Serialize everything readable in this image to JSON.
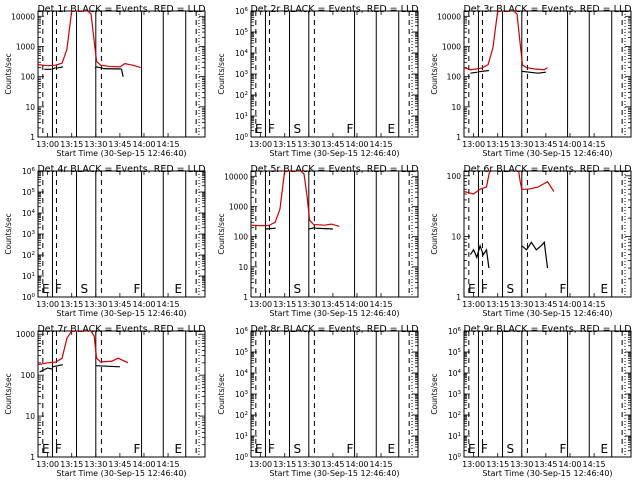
{
  "figure": {
    "colors": {
      "events": "#000000",
      "lld": "#cc0000",
      "background": "#ffffff"
    },
    "ylabel": "Counts/sec",
    "xlabel": "Start Time (30-Sep-15 12:46:40)",
    "xticks": [
      "13:00",
      "13:15",
      "13:30",
      "13:45",
      "14:00",
      "14:15"
    ]
  },
  "chart_data": [
    {
      "type": "line",
      "title": "Det 1r BLACK = Events, RED = LLD",
      "yscale": "log",
      "ylim": [
        1,
        15000
      ],
      "yticks": [
        "1",
        "10",
        "100",
        "1000",
        "10000"
      ],
      "xlim_min": [
        -6,
        98
      ],
      "dashed_lines": [
        -3,
        5.5,
        33.5,
        92.5
      ],
      "solid_lines": [
        3,
        18,
        30,
        58.5,
        72,
        86
      ],
      "region_labels": [],
      "series": [
        {
          "name": "Events",
          "segments": [
            {
              "x": [
                -2,
                2.5
              ],
              "y": [
                175,
                175
              ]
            },
            {
              "x": [
                3,
                5
              ],
              "y": [
                180,
                200
              ]
            },
            {
              "x": [
                5.5,
                9.5
              ],
              "y": [
                190,
                210
              ]
            },
            {
              "x": [
                29.5,
                30
              ],
              "y": [
                190,
                200
              ]
            },
            {
              "x": [
                30.2,
                34.5
              ],
              "y": [
                210,
                190
              ]
            },
            {
              "x": [
                34.5,
                46
              ],
              "y": [
                185,
                180
              ]
            },
            {
              "x": [
                46,
                47
              ],
              "y": [
                180,
                100
              ]
            }
          ]
        },
        {
          "name": "LLD",
          "segments": [
            {
              "x": [
                -6,
                0,
                5,
                9,
                12,
                15,
                18,
                22,
                25,
                27,
                29,
                30.5,
                33,
                38,
                45,
                48,
                53,
                58
              ],
              "y": [
                250,
                230,
                240,
                280,
                800,
                15000,
                15000,
                15000,
                15000,
                12000,
                1500,
                320,
                240,
                220,
                210,
                270,
                240,
                200
              ]
            }
          ]
        }
      ]
    },
    {
      "type": "line",
      "title": "Det 2r BLACK = Events, RED = LLD",
      "yscale": "log",
      "ylim": [
        1,
        1000000
      ],
      "yticks": [
        "10^0",
        "10^1",
        "10^2",
        "10^3",
        "10^4",
        "10^5",
        "10^6"
      ],
      "xlim_min": [
        -6,
        98
      ],
      "dashed_lines": [
        -3,
        5.5,
        33.5,
        92.5
      ],
      "solid_lines": [
        3,
        18,
        30,
        58.5,
        72,
        86
      ],
      "region_labels": [
        "E",
        "F",
        "S",
        "F",
        "E"
      ],
      "series": [
        {
          "name": "Events",
          "segments": []
        },
        {
          "name": "LLD",
          "segments": []
        }
      ]
    },
    {
      "type": "line",
      "title": "Det 3r BLACK = Events, RED = LLD",
      "yscale": "log",
      "ylim": [
        1,
        15000
      ],
      "yticks": [
        "1",
        "10",
        "100",
        "1000",
        "10000"
      ],
      "xlim_min": [
        -6,
        98
      ],
      "dashed_lines": [
        -3,
        5.5,
        33.5,
        92.5
      ],
      "solid_lines": [
        3,
        18,
        30,
        58.5,
        72,
        86
      ],
      "region_labels": [],
      "series": [
        {
          "name": "Events",
          "segments": [
            {
              "x": [
                -2,
                2.5
              ],
              "y": [
                130,
                140
              ]
            },
            {
              "x": [
                3,
                9.5
              ],
              "y": [
                145,
                160
              ]
            },
            {
              "x": [
                30,
                40
              ],
              "y": [
                150,
                130
              ]
            },
            {
              "x": [
                40,
                45
              ],
              "y": [
                130,
                140
              ]
            }
          ]
        },
        {
          "name": "LLD",
          "segments": [
            {
              "x": [
                -6,
                -2,
                5,
                9,
                12,
                15,
                18,
                22,
                25,
                27,
                29,
                30.5,
                33,
                38,
                44,
                46
              ],
              "y": [
                200,
                170,
                190,
                250,
                900,
                15000,
                15000,
                15000,
                15000,
                12000,
                1200,
                240,
                200,
                180,
                170,
                200
              ]
            }
          ]
        }
      ]
    },
    {
      "type": "line",
      "title": "Det 4r BLACK = Events, RED = LLD",
      "yscale": "log",
      "ylim": [
        1,
        1000000
      ],
      "yticks": [
        "10^0",
        "10^1",
        "10^2",
        "10^3",
        "10^4",
        "10^5",
        "10^6"
      ],
      "xlim_min": [
        -6,
        98
      ],
      "dashed_lines": [
        -3,
        5.5,
        33.5,
        92.5
      ],
      "solid_lines": [
        3,
        18,
        30,
        58.5,
        72,
        86
      ],
      "region_labels": [
        "E",
        "F",
        "S",
        "F",
        "E"
      ],
      "series": [
        {
          "name": "Events",
          "segments": []
        },
        {
          "name": "LLD",
          "segments": []
        }
      ]
    },
    {
      "type": "line",
      "title": "Det 5r BLACK = Events, RED = LLD",
      "yscale": "log",
      "ylim": [
        1,
        15000
      ],
      "yticks": [
        "1",
        "10",
        "100",
        "1000",
        "10000"
      ],
      "xlim_min": [
        -6,
        98
      ],
      "dashed_lines": [
        -3,
        5.5,
        33.5,
        92.5
      ],
      "solid_lines": [
        3,
        18,
        30,
        58.5,
        72,
        86
      ],
      "region_labels": [
        "S"
      ],
      "series": [
        {
          "name": "Events",
          "segments": [
            {
              "x": [
                3,
                9.5
              ],
              "y": [
                180,
                190
              ]
            },
            {
              "x": [
                30,
                34
              ],
              "y": [
                180,
                200
              ]
            },
            {
              "x": [
                34,
                45
              ],
              "y": [
                190,
                180
              ]
            }
          ]
        },
        {
          "name": "LLD",
          "segments": [
            {
              "x": [
                -6,
                0,
                5,
                9,
                12,
                15,
                18,
                22,
                25,
                27,
                29,
                30.5,
                33,
                40,
                44,
                49
              ],
              "y": [
                240,
                230,
                235,
                300,
                800,
                15000,
                15000,
                15000,
                15000,
                12000,
                2000,
                350,
                250,
                240,
                260,
                220
              ]
            }
          ]
        }
      ]
    },
    {
      "type": "line",
      "title": "Det 6r BLACK = Events, RED = LLD",
      "yscale": "log",
      "ylim": [
        1,
        120
      ],
      "yticks": [
        "1",
        "10",
        "100"
      ],
      "xlim_min": [
        -6,
        98
      ],
      "dashed_lines": [
        -3,
        5.5,
        33.5,
        92.5
      ],
      "solid_lines": [
        3,
        18,
        30,
        58.5,
        72,
        86
      ],
      "region_labels": [
        "E",
        "F",
        "S",
        "F",
        "E"
      ],
      "series": [
        {
          "name": "Events",
          "segments": [
            {
              "x": [
                -2,
                0,
                2,
                4,
                6,
                8,
                9.5
              ],
              "y": [
                5,
                6,
                4.5,
                7,
                5,
                6,
                3
              ]
            },
            {
              "x": [
                30,
                33,
                36,
                39,
                42,
                44,
                46
              ],
              "y": [
                7,
                6,
                8,
                6,
                7,
                8,
                3
              ]
            }
          ]
        },
        {
          "name": "LLD",
          "segments": [
            {
              "x": [
                -6,
                0,
                4,
                8,
                9,
                10
              ],
              "y": [
                55,
                50,
                60,
                65,
                90,
                120
              ]
            },
            {
              "x": [
                28,
                29,
                30,
                34,
                40,
                46,
                50
              ],
              "y": [
                120,
                80,
                60,
                60,
                65,
                80,
                55
              ]
            }
          ]
        }
      ]
    },
    {
      "type": "line",
      "title": "Det 7r BLACK = Events, RED = LLD",
      "yscale": "log",
      "ylim": [
        1,
        1200
      ],
      "yticks": [
        "1",
        "10",
        "100",
        "1000"
      ],
      "xlim_min": [
        -6,
        98
      ],
      "dashed_lines": [
        -3,
        5.5,
        33.5,
        92.5
      ],
      "solid_lines": [
        3,
        18,
        30,
        58.5,
        72,
        86
      ],
      "region_labels": [
        "E",
        "F",
        "F",
        "E"
      ],
      "series": [
        {
          "name": "Events",
          "segments": [
            {
              "x": [
                -5,
                0,
                3
              ],
              "y": [
                120,
                150,
                140
              ]
            },
            {
              "x": [
                3,
                9.5
              ],
              "y": [
                160,
                180
              ]
            },
            {
              "x": [
                30,
                45
              ],
              "y": [
                170,
                160
              ]
            }
          ]
        },
        {
          "name": "LLD",
          "segments": [
            {
              "x": [
                -6,
                0,
                5,
                9,
                12,
                15,
                18,
                22,
                25,
                27,
                29,
                30.5,
                33,
                40,
                44,
                50
              ],
              "y": [
                180,
                200,
                210,
                260,
                800,
                1200,
                1200,
                1200,
                1200,
                1200,
                900,
                260,
                210,
                220,
                260,
                200
              ]
            }
          ]
        }
      ]
    },
    {
      "type": "line",
      "title": "Det 8r BLACK = Events, RED = LLD",
      "yscale": "log",
      "ylim": [
        1,
        1000000
      ],
      "yticks": [
        "10^0",
        "10^1",
        "10^2",
        "10^3",
        "10^4",
        "10^5",
        "10^6"
      ],
      "xlim_min": [
        -6,
        98
      ],
      "dashed_lines": [
        -3,
        5.5,
        33.5,
        92.5
      ],
      "solid_lines": [
        3,
        18,
        30,
        58.5,
        72,
        86
      ],
      "region_labels": [
        "E",
        "F",
        "S",
        "F",
        "E"
      ],
      "series": [
        {
          "name": "Events",
          "segments": []
        },
        {
          "name": "LLD",
          "segments": []
        }
      ]
    },
    {
      "type": "line",
      "title": "Det 9r BLACK = Events, RED = LLD",
      "yscale": "log",
      "ylim": [
        1,
        1000000
      ],
      "yticks": [
        "10^0",
        "10^1",
        "10^2",
        "10^3",
        "10^4",
        "10^5",
        "10^6"
      ],
      "xlim_min": [
        -6,
        98
      ],
      "dashed_lines": [
        -3,
        5.5,
        33.5,
        92.5
      ],
      "solid_lines": [
        3,
        18,
        30,
        58.5,
        72,
        86
      ],
      "region_labels": [
        "E",
        "F",
        "S",
        "F",
        "E"
      ],
      "series": [
        {
          "name": "Events",
          "segments": []
        },
        {
          "name": "LLD",
          "segments": []
        }
      ]
    }
  ]
}
